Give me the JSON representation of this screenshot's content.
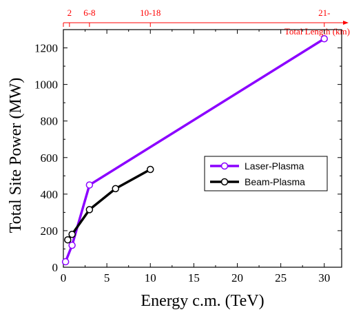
{
  "chart_data": {
    "type": "line",
    "xlabel": "Energy c.m. (TeV)",
    "ylabel": "Total Site Power (MW)",
    "xlim": [
      0,
      32
    ],
    "ylim": [
      0,
      1300
    ],
    "x_ticks": [
      0,
      5,
      10,
      15,
      20,
      25,
      30
    ],
    "y_ticks": [
      0,
      200,
      400,
      600,
      800,
      1000,
      1200
    ],
    "grid": false,
    "legend_position": "right-middle",
    "series": [
      {
        "name": "Laser-Plasma",
        "color": "#8b00ff",
        "marker_fill": "#ffffff",
        "points": [
          [
            0.25,
            30
          ],
          [
            1,
            120
          ],
          [
            3,
            450
          ],
          [
            30,
            1250
          ]
        ]
      },
      {
        "name": "Beam-Plasma",
        "color": "#000000",
        "marker_fill": "#ffffff",
        "points": [
          [
            0.5,
            150
          ],
          [
            1,
            180
          ],
          [
            3,
            315
          ],
          [
            6,
            430
          ],
          [
            10,
            535
          ]
        ]
      }
    ],
    "top_axis": {
      "label": "Total Length (km)",
      "color": "#ff0000",
      "ticks": [
        {
          "x": 0.7,
          "label": "2"
        },
        {
          "x": 3,
          "label": "6-8"
        },
        {
          "x": 10,
          "label": "10-18"
        },
        {
          "x": 30,
          "label": "21-"
        }
      ]
    }
  }
}
